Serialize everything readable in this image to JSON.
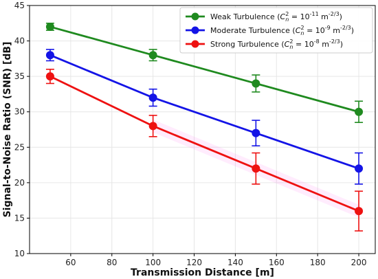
{
  "chart_data": {
    "type": "line",
    "title": "",
    "xlabel": "Transmission Distance [m]",
    "ylabel": "Signal-to-Noise Ratio (SNR) [dB]",
    "xlim": [
      40,
      208
    ],
    "ylim": [
      10,
      45
    ],
    "xticks": [
      60,
      80,
      100,
      120,
      140,
      160,
      180,
      200
    ],
    "yticks": [
      10,
      15,
      20,
      25,
      30,
      35,
      40,
      45
    ],
    "grid": true,
    "legend_position": "top-right",
    "series": [
      {
        "name": "Weak Turbulence",
        "cn2": "10",
        "cn2_exp": "-11",
        "unit_text": "m",
        "unit_exp": "-2/3",
        "color": "#1f8a1f",
        "x": [
          50,
          100,
          150,
          200
        ],
        "y": [
          42,
          38,
          34,
          30
        ],
        "err": [
          0.5,
          0.8,
          1.2,
          1.5
        ]
      },
      {
        "name": "Moderate Turbulence",
        "cn2": "10",
        "cn2_exp": "-9",
        "unit_text": "m",
        "unit_exp": "-2/3",
        "color": "#1414e6",
        "x": [
          50,
          100,
          150,
          200
        ],
        "y": [
          38,
          32,
          27,
          22
        ],
        "err": [
          0.8,
          1.2,
          1.8,
          2.2
        ]
      },
      {
        "name": "Strong Turbulence",
        "cn2": "10",
        "cn2_exp": "-8",
        "unit_text": "m",
        "unit_exp": "-2/3",
        "color": "#ee1111",
        "x": [
          50,
          100,
          150,
          200
        ],
        "y": [
          35,
          28,
          22,
          16
        ],
        "err": [
          1.0,
          1.5,
          2.2,
          2.8
        ]
      }
    ]
  }
}
